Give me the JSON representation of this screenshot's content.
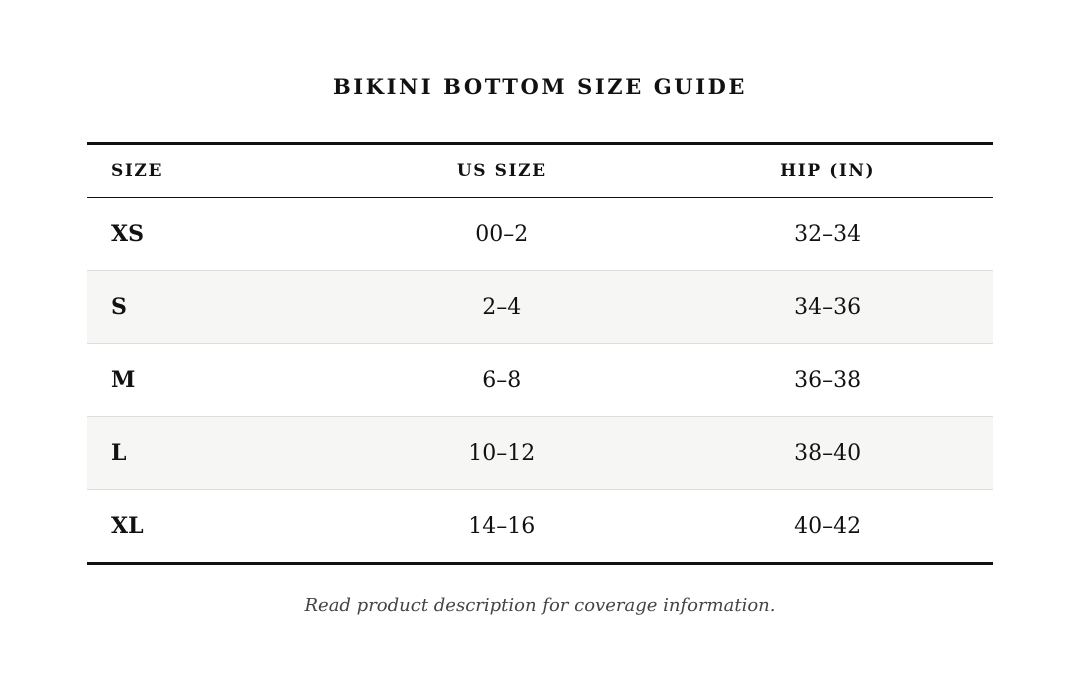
{
  "title": "BIKINI BOTTOM SIZE GUIDE",
  "table": {
    "headers": [
      "SIZE",
      "US SIZE",
      "HIP (IN)"
    ],
    "rows": [
      {
        "size": "XS",
        "us": "00–2",
        "hip": "32–34"
      },
      {
        "size": "S",
        "us": "2–4",
        "hip": "34–36"
      },
      {
        "size": "M",
        "us": "6–8",
        "hip": "36–38"
      },
      {
        "size": "L",
        "us": "10–12",
        "hip": "38–40"
      },
      {
        "size": "XL",
        "us": "14–16",
        "hip": "40–42"
      }
    ]
  },
  "note": "Read product description for coverage information.",
  "colors": {
    "text": "#111111",
    "muted_text": "#444444",
    "stripe": "#f6f6f5",
    "rule": "#111111",
    "divider": "#dddddd"
  }
}
